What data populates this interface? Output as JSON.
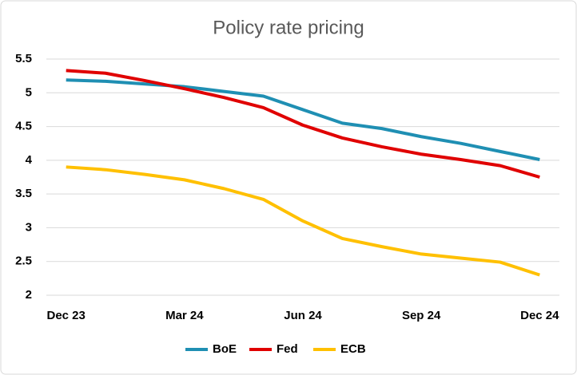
{
  "chart_data": {
    "type": "line",
    "title": "Policy rate pricing",
    "categories": [
      "Dec 23",
      null,
      null,
      "Mar 24",
      null,
      null,
      "Jun 24",
      null,
      null,
      "Sep 24",
      null,
      null,
      "Dec 24"
    ],
    "series": [
      {
        "name": "BoE",
        "color": "#1f8fb3",
        "values": [
          5.19,
          5.17,
          5.13,
          5.09,
          5.02,
          4.95,
          4.75,
          4.55,
          4.47,
          4.35,
          4.25,
          4.13,
          4.01
        ]
      },
      {
        "name": "Fed",
        "color": "#e00000",
        "values": [
          5.33,
          5.29,
          5.18,
          5.06,
          4.93,
          4.78,
          4.52,
          4.33,
          4.2,
          4.09,
          4.01,
          3.92,
          3.75
        ]
      },
      {
        "name": "ECB",
        "color": "#ffc000",
        "values": [
          3.9,
          3.86,
          3.79,
          3.71,
          3.58,
          3.42,
          3.1,
          2.84,
          2.72,
          2.61,
          2.55,
          2.49,
          2.3
        ]
      }
    ],
    "ylim": [
      2,
      5.5
    ],
    "yticks": [
      2,
      2.5,
      3,
      3.5,
      4,
      4.5,
      5,
      5.5
    ],
    "grid": true,
    "legend": "bottom"
  }
}
